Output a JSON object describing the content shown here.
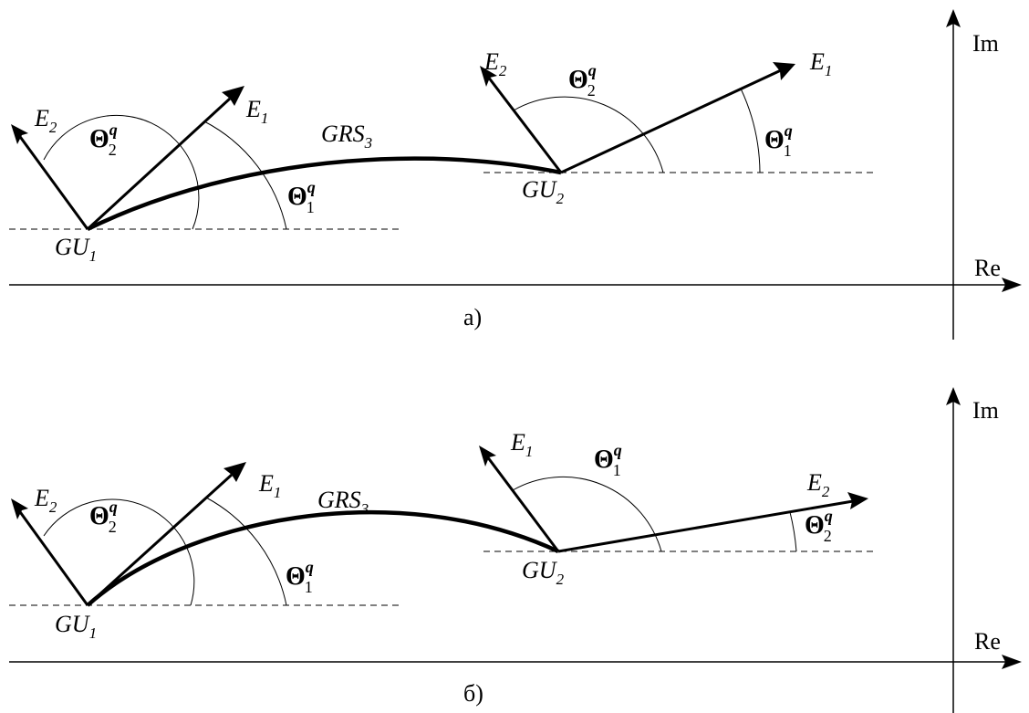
{
  "axes": {
    "re_label": "Re",
    "im_label": "Im"
  },
  "symbols": {
    "theta": "Θ",
    "sup_q": "q",
    "sub_1": "1",
    "sub_2": "2",
    "e_letter": "E",
    "gu_letters": "GU",
    "grs_letters": "GRS",
    "grs_index": "3"
  },
  "panels": [
    {
      "caption": "а)",
      "gu1": {
        "label": "GU",
        "index": "1"
      },
      "gu2": {
        "label": "GU",
        "index": "2"
      },
      "curve_label": {
        "text": "GRS",
        "index": "3"
      },
      "gu1_vectors": [
        {
          "label": "E",
          "index": "2"
        },
        {
          "label": "E",
          "index": "1"
        }
      ],
      "gu2_vectors": [
        {
          "label": "E",
          "index": "2"
        },
        {
          "label": "E",
          "index": "1"
        }
      ],
      "gu1_angles": [
        {
          "index": "2"
        },
        {
          "index": "1"
        }
      ],
      "gu2_angles": [
        {
          "index": "2"
        },
        {
          "index": "1"
        }
      ]
    },
    {
      "caption": "б)",
      "gu1": {
        "label": "GU",
        "index": "1"
      },
      "gu2": {
        "label": "GU",
        "index": "2"
      },
      "curve_label": {
        "text": "GRS",
        "index": "3"
      },
      "gu1_vectors": [
        {
          "label": "E",
          "index": "2"
        },
        {
          "label": "E",
          "index": "1"
        }
      ],
      "gu2_vectors": [
        {
          "label": "E",
          "index": "1"
        },
        {
          "label": "E",
          "index": "2"
        }
      ],
      "gu1_angles": [
        {
          "index": "2"
        },
        {
          "index": "1"
        }
      ],
      "gu2_angles": [
        {
          "index": "1"
        },
        {
          "index": "2"
        }
      ]
    }
  ]
}
